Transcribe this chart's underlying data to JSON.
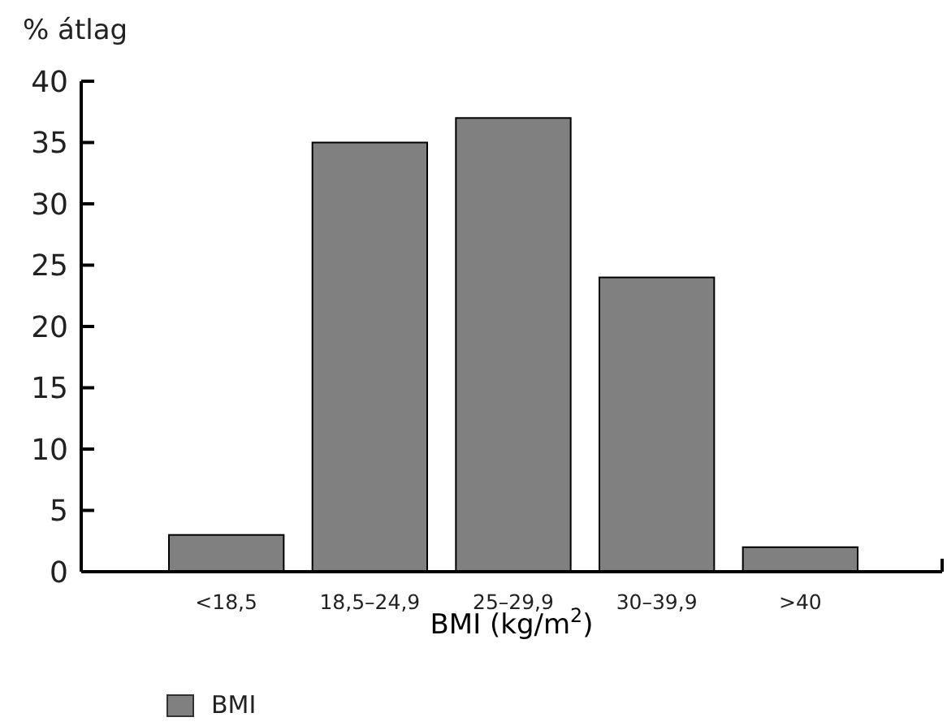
{
  "chart_data": {
    "type": "bar",
    "ylabel": "% átlag",
    "xlabel": "BMI (kg/m$^{2}$)",
    "categories": [
      "<18,5",
      "18,5–24,9",
      "25–29,9",
      "30–39,9",
      ">40"
    ],
    "series": [
      {
        "name": "BMI",
        "color": "#808080",
        "values": [
          3,
          35,
          37,
          24,
          2
        ]
      }
    ],
    "ylim": [
      0,
      40
    ],
    "yticks": [
      0,
      5,
      10,
      15,
      20,
      25,
      30,
      35,
      40
    ],
    "grid": false,
    "legend": "bottom left"
  }
}
